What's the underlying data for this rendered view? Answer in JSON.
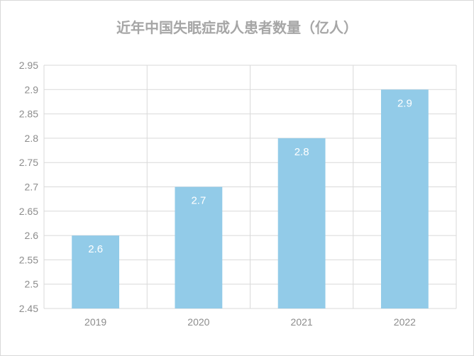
{
  "chart_data": {
    "type": "bar",
    "title": "近年中国失眠症成人患者数量（亿人）",
    "xlabel": "",
    "ylabel": "",
    "categories": [
      "2019",
      "2020",
      "2021",
      "2022"
    ],
    "series": [
      {
        "values": [
          2.6,
          2.7,
          2.8,
          2.9
        ]
      }
    ],
    "data_labels": [
      "2.6",
      "2.7",
      "2.8",
      "2.9"
    ],
    "ylim": [
      2.45,
      2.95
    ],
    "yticks": [
      2.45,
      2.5,
      2.55,
      2.6,
      2.65,
      2.7,
      2.75,
      2.8,
      2.85,
      2.9,
      2.95
    ],
    "ytick_labels": [
      "2.45",
      "2.5",
      "2.55",
      "2.6",
      "2.65",
      "2.7",
      "2.75",
      "2.8",
      "2.85",
      "2.9",
      "2.95"
    ],
    "grid": "both",
    "legend": "none",
    "colors": {
      "bar": "#92cbe8",
      "grid": "#d9d9d9",
      "tick_text": "#8c8c8c",
      "title": "#a6a6a6",
      "data_label": "#ffffff"
    }
  }
}
